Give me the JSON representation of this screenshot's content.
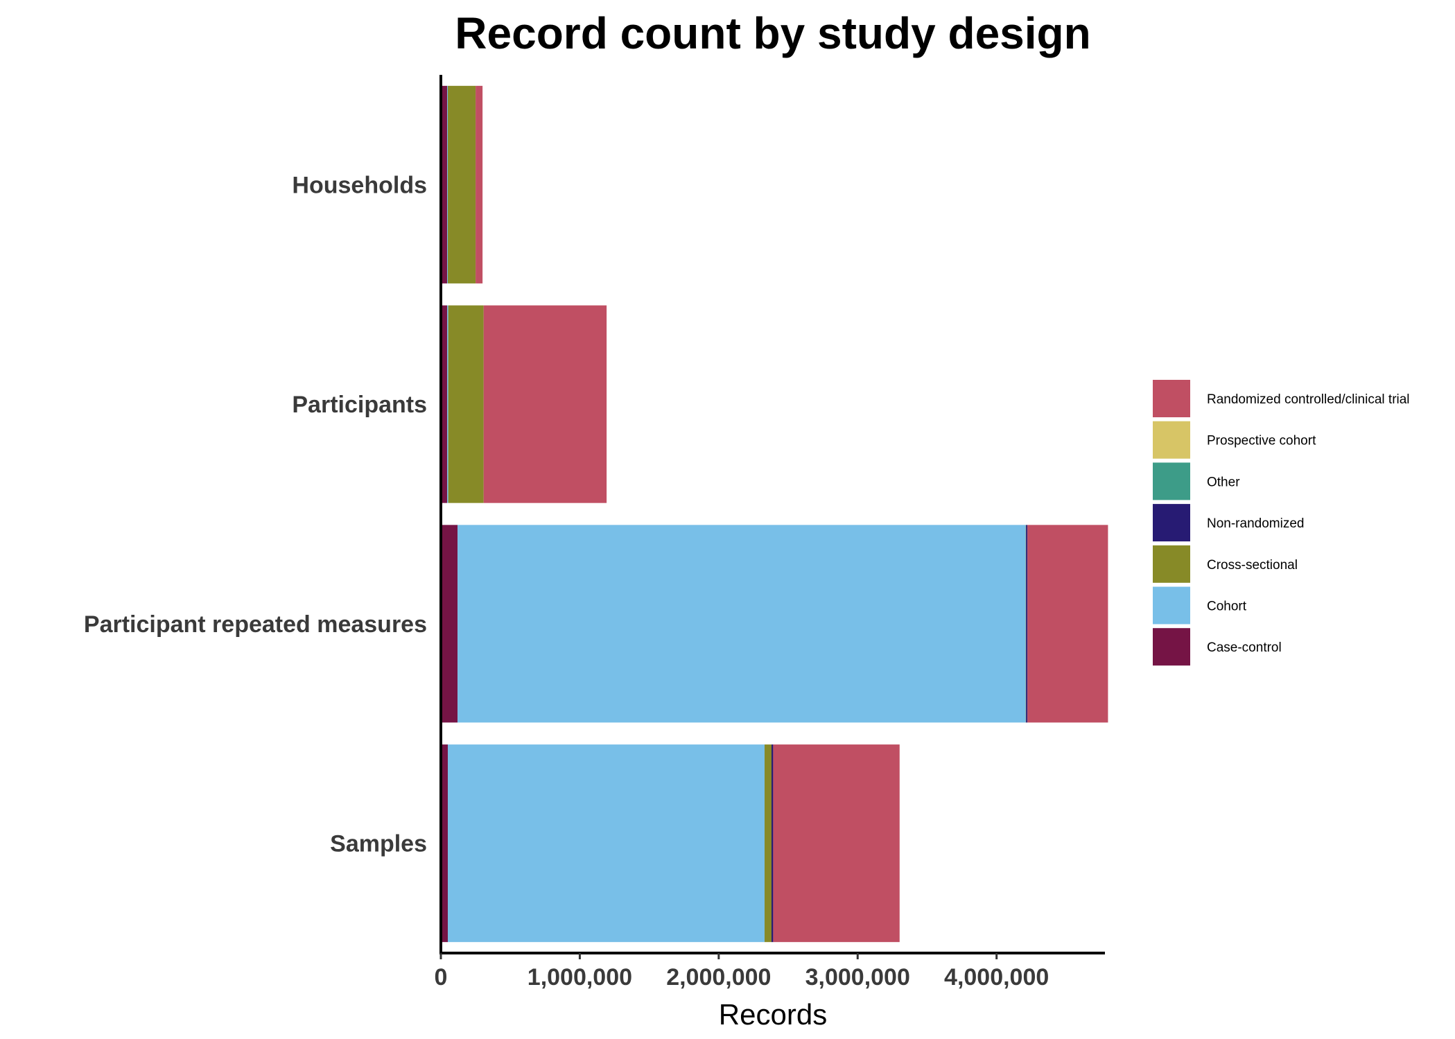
{
  "chart_data": {
    "type": "bar",
    "orientation": "horizontal",
    "stacked": true,
    "title": "Record count by study design",
    "xlabel": "Records",
    "ylabel": "",
    "xlim": [
      0,
      4780000
    ],
    "xticks": [
      0,
      1000000,
      2000000,
      3000000,
      4000000
    ],
    "xtick_labels": [
      "0",
      "1,000,000",
      "2,000,000",
      "3,000,000",
      "4,000,000"
    ],
    "grid": false,
    "legend_position": "right",
    "categories": [
      "Households",
      "Participants",
      "Participant repeated measures",
      "Samples"
    ],
    "series": [
      {
        "name": "Case-control",
        "color": "#751445",
        "values": [
          45000,
          45000,
          120000,
          50000
        ]
      },
      {
        "name": "Cohort",
        "color": "#78bfe8",
        "values": [
          5000,
          8000,
          4090000,
          2280000
        ]
      },
      {
        "name": "Cross-sectional",
        "color": "#878a27",
        "values": [
          200000,
          255000,
          2000,
          50000
        ]
      },
      {
        "name": "Non-randomized",
        "color": "#271b73",
        "values": [
          0,
          0,
          10000,
          12000
        ]
      },
      {
        "name": "Other",
        "color": "#3d9c88",
        "values": [
          0,
          0,
          0,
          0
        ]
      },
      {
        "name": "Prospective cohort",
        "color": "#d7c566",
        "values": [
          0,
          0,
          0,
          0
        ]
      },
      {
        "name": "Randomized controlled/clinical trial",
        "color": "#c04f63",
        "values": [
          50000,
          885000,
          580000,
          910000
        ]
      }
    ]
  }
}
